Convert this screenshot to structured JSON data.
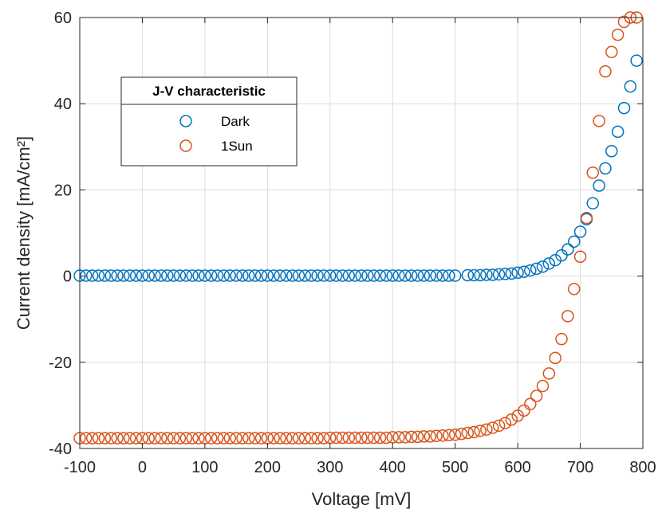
{
  "chart_data": {
    "type": "scatter",
    "xlabel": "Voltage [mV]",
    "ylabel": "Current density [mA/cm²]",
    "xlim": [
      -100,
      800
    ],
    "ylim": [
      -40,
      60
    ],
    "xticks": [
      -100,
      0,
      100,
      200,
      300,
      400,
      500,
      600,
      700,
      800
    ],
    "yticks": [
      -40,
      -20,
      0,
      20,
      40,
      60
    ],
    "xtick_labels": [
      "-100",
      "0",
      "100",
      "200",
      "300",
      "400",
      "500",
      "600",
      "700",
      "800"
    ],
    "ytick_labels": [
      "-40",
      "-20",
      "0",
      "20",
      "40",
      "60"
    ],
    "grid": true,
    "legend": {
      "title": "J-V characteristic",
      "placement": "top-left"
    },
    "marker": "open-circle",
    "series": [
      {
        "name": "Dark",
        "color": "#0072BD",
        "x": [
          -100,
          -90,
          -80,
          -70,
          -60,
          -50,
          -40,
          -30,
          -20,
          -10,
          0,
          10,
          20,
          30,
          40,
          50,
          60,
          70,
          80,
          90,
          100,
          110,
          120,
          130,
          140,
          150,
          160,
          170,
          180,
          190,
          200,
          210,
          220,
          230,
          240,
          250,
          260,
          270,
          280,
          290,
          300,
          310,
          320,
          330,
          340,
          350,
          360,
          370,
          380,
          390,
          400,
          410,
          420,
          430,
          440,
          450,
          460,
          470,
          480,
          490,
          500,
          520,
          530,
          540,
          550,
          560,
          570,
          580,
          590,
          600,
          610,
          620,
          630,
          640,
          650,
          660,
          670,
          680,
          690,
          700,
          710,
          720,
          730,
          740,
          750,
          760,
          770,
          780,
          790
        ],
        "y": [
          0.1,
          0.1,
          0.1,
          0.1,
          0.1,
          0.1,
          0.1,
          0.1,
          0.1,
          0.1,
          0.1,
          0.1,
          0.1,
          0.1,
          0.1,
          0.1,
          0.1,
          0.1,
          0.1,
          0.1,
          0.1,
          0.1,
          0.1,
          0.1,
          0.1,
          0.1,
          0.1,
          0.1,
          0.1,
          0.1,
          0.1,
          0.1,
          0.1,
          0.1,
          0.1,
          0.1,
          0.1,
          0.1,
          0.1,
          0.1,
          0.1,
          0.1,
          0.1,
          0.1,
          0.1,
          0.1,
          0.1,
          0.1,
          0.1,
          0.1,
          0.1,
          0.1,
          0.1,
          0.1,
          0.1,
          0.1,
          0.1,
          0.1,
          0.1,
          0.1,
          0.1,
          0.2,
          0.2,
          0.2,
          0.3,
          0.3,
          0.4,
          0.5,
          0.6,
          0.8,
          1.0,
          1.3,
          1.7,
          2.2,
          2.9,
          3.7,
          4.8,
          6.2,
          8.0,
          10.3,
          13.2,
          16.9,
          21.0,
          25.0,
          29.0,
          33.5,
          39.0,
          44.0,
          50.0
        ]
      },
      {
        "name": "1Sun",
        "color": "#D95319",
        "x": [
          -100,
          -90,
          -80,
          -70,
          -60,
          -50,
          -40,
          -30,
          -20,
          -10,
          0,
          10,
          20,
          30,
          40,
          50,
          60,
          70,
          80,
          90,
          100,
          110,
          120,
          130,
          140,
          150,
          160,
          170,
          180,
          190,
          200,
          210,
          220,
          230,
          240,
          250,
          260,
          270,
          280,
          290,
          300,
          310,
          320,
          330,
          340,
          350,
          360,
          370,
          380,
          390,
          400,
          410,
          420,
          430,
          440,
          450,
          460,
          470,
          480,
          490,
          500,
          510,
          520,
          530,
          540,
          550,
          560,
          570,
          580,
          590,
          600,
          610,
          620,
          630,
          640,
          650,
          660,
          670,
          680,
          690,
          700,
          710,
          720,
          730,
          740,
          750,
          760,
          770,
          780,
          790
        ],
        "y": [
          -37.6,
          -37.6,
          -37.6,
          -37.6,
          -37.6,
          -37.6,
          -37.6,
          -37.6,
          -37.6,
          -37.6,
          -37.6,
          -37.6,
          -37.6,
          -37.6,
          -37.6,
          -37.6,
          -37.6,
          -37.6,
          -37.6,
          -37.6,
          -37.6,
          -37.6,
          -37.6,
          -37.6,
          -37.6,
          -37.6,
          -37.6,
          -37.6,
          -37.6,
          -37.6,
          -37.6,
          -37.6,
          -37.6,
          -37.6,
          -37.6,
          -37.6,
          -37.6,
          -37.6,
          -37.6,
          -37.6,
          -37.5,
          -37.5,
          -37.5,
          -37.5,
          -37.5,
          -37.5,
          -37.5,
          -37.5,
          -37.5,
          -37.5,
          -37.4,
          -37.4,
          -37.4,
          -37.3,
          -37.3,
          -37.2,
          -37.2,
          -37.1,
          -37.0,
          -36.9,
          -36.8,
          -36.6,
          -36.4,
          -36.2,
          -35.9,
          -35.6,
          -35.2,
          -34.7,
          -34.1,
          -33.3,
          -32.4,
          -31.2,
          -29.7,
          -27.8,
          -25.5,
          -22.6,
          -19.0,
          -14.6,
          -9.3,
          -3.0,
          4.5,
          13.5,
          24.0,
          36.0,
          47.5,
          52.0,
          56.0,
          59.0,
          60.0,
          60.0
        ]
      }
    ]
  }
}
